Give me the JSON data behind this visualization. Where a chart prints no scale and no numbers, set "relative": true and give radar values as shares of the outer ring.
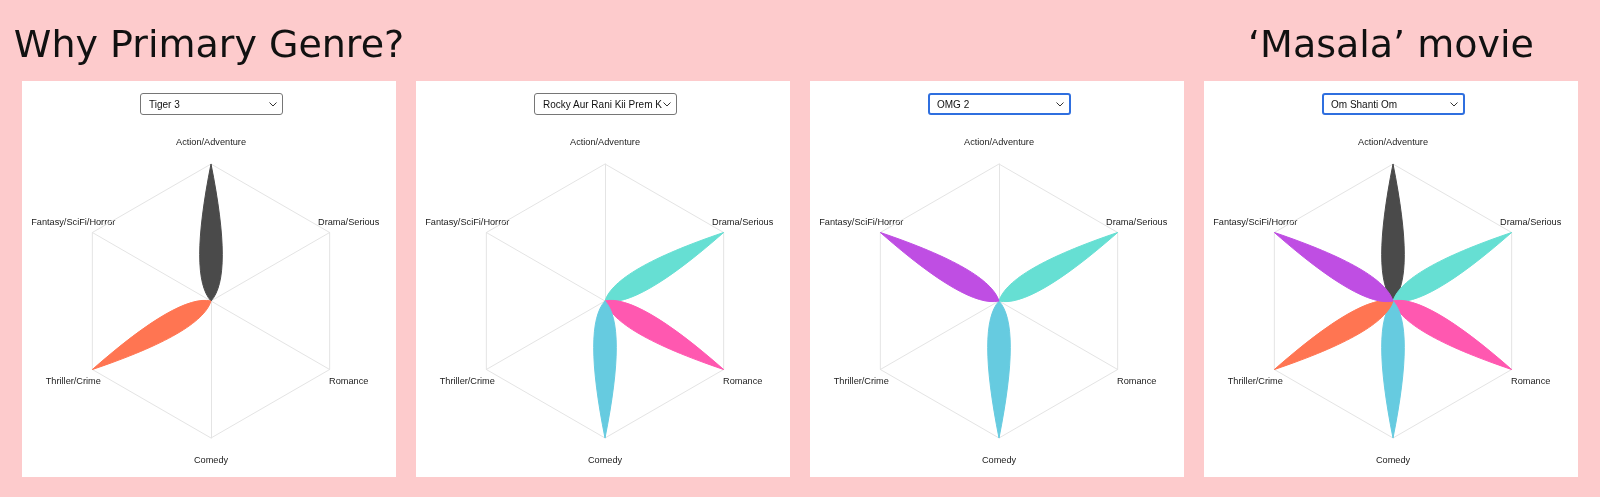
{
  "chart_data": [
    {
      "type": "radar",
      "title": "Why Primary Genre?",
      "subtitle": "Tiger 3",
      "categories": [
        "Action/Adventure",
        "Drama/Serious",
        "Romance",
        "Comedy",
        "Thriller/Crime",
        "Fantasy/SciFi/Horror"
      ],
      "relative": true,
      "grid": true,
      "series": [
        {
          "color": "#4a4a4a",
          "values": [
            1,
            0,
            0,
            0,
            0,
            0
          ]
        },
        {
          "color": "#ff7552",
          "values": [
            0,
            0,
            0,
            0,
            1,
            0
          ]
        }
      ]
    },
    {
      "type": "radar",
      "subtitle": "Rocky Aur Rani Kii Prem K",
      "categories": [
        "Action/Adventure",
        "Drama/Serious",
        "Romance",
        "Comedy",
        "Thriller/Crime",
        "Fantasy/SciFi/Horror"
      ],
      "relative": true,
      "grid": true,
      "series": [
        {
          "color": "#66dfd3",
          "values": [
            0,
            1,
            0,
            0,
            0,
            0
          ]
        },
        {
          "color": "#ff58b0",
          "values": [
            0,
            0,
            1,
            0,
            0,
            0
          ]
        },
        {
          "color": "#66cbe0",
          "values": [
            0,
            0,
            0,
            1,
            0,
            0
          ]
        }
      ]
    },
    {
      "type": "radar",
      "subtitle": "OMG 2",
      "categories": [
        "Action/Adventure",
        "Drama/Serious",
        "Romance",
        "Comedy",
        "Thriller/Crime",
        "Fantasy/SciFi/Horror"
      ],
      "relative": true,
      "grid": true,
      "series": [
        {
          "color": "#66dfd3",
          "values": [
            0,
            1,
            0,
            0,
            0,
            0
          ]
        },
        {
          "color": "#66cbe0",
          "values": [
            0,
            0,
            0,
            1,
            0,
            0
          ]
        },
        {
          "color": "#bf4ee3",
          "values": [
            0,
            0,
            0,
            0,
            0,
            1
          ]
        }
      ]
    },
    {
      "type": "radar",
      "title": "‘Masala’ movie",
      "subtitle": "Om Shanti Om",
      "categories": [
        "Action/Adventure",
        "Drama/Serious",
        "Romance",
        "Comedy",
        "Thriller/Crime",
        "Fantasy/SciFi/Horror"
      ],
      "relative": true,
      "grid": true,
      "series": [
        {
          "color": "#4a4a4a",
          "values": [
            1,
            0,
            0,
            0,
            0,
            0
          ]
        },
        {
          "color": "#66dfd3",
          "values": [
            0,
            1,
            0,
            0,
            0,
            0
          ]
        },
        {
          "color": "#ff58b0",
          "values": [
            0,
            0,
            1,
            0,
            0,
            0
          ]
        },
        {
          "color": "#66cbe0",
          "values": [
            0,
            0,
            0,
            1,
            0,
            0
          ]
        },
        {
          "color": "#ff7552",
          "values": [
            0,
            0,
            0,
            0,
            1,
            0
          ]
        },
        {
          "color": "#bf4ee3",
          "values": [
            0,
            0,
            0,
            0,
            0,
            1
          ]
        }
      ]
    }
  ]
}
